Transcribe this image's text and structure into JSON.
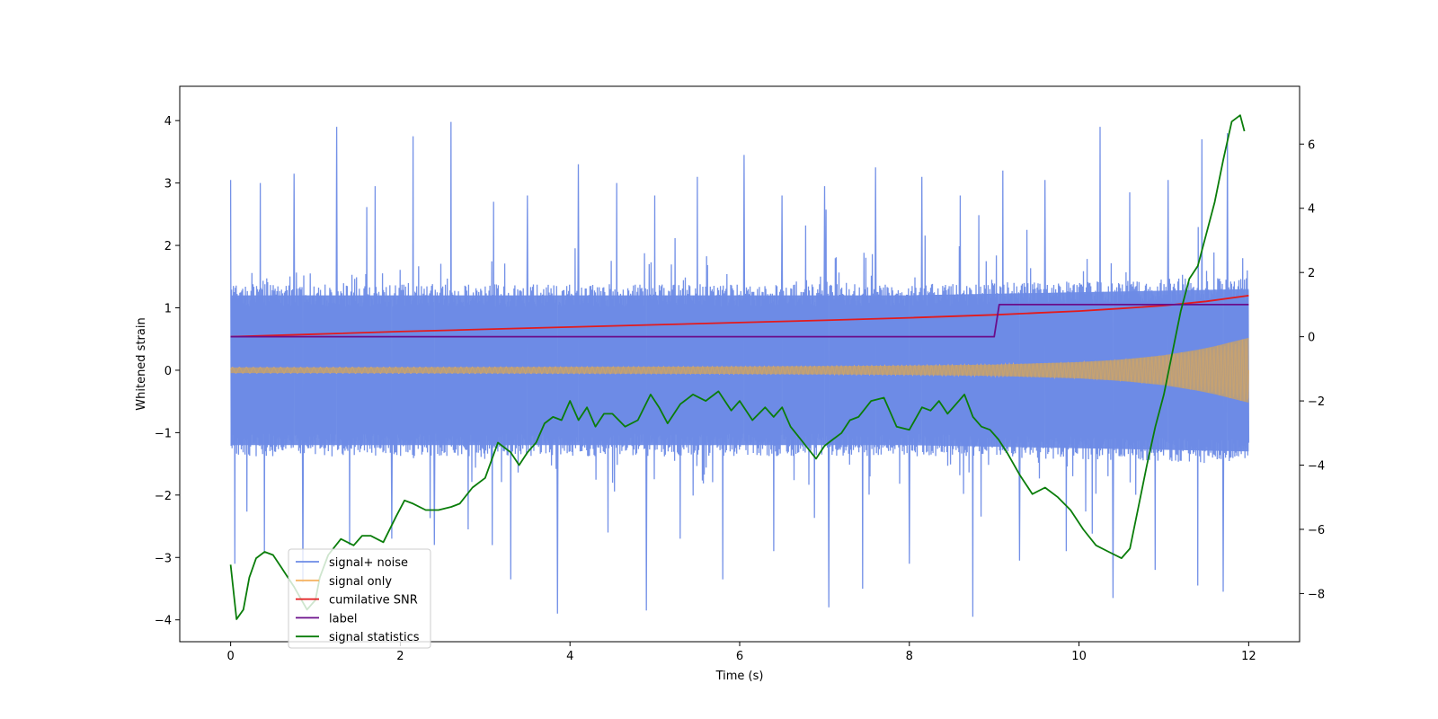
{
  "chart_data": {
    "type": "line",
    "title": "",
    "xlabel": "Time (s)",
    "ylabel": "Whitened strain",
    "y2label": "",
    "xlim": [
      -0.6,
      12.6
    ],
    "ylim": [
      -4.35,
      4.55
    ],
    "y2lim": [
      -9.5,
      7.8
    ],
    "x_ticks": [
      0,
      2,
      4,
      6,
      8,
      10,
      12
    ],
    "x_tick_labels": [
      "0",
      "2",
      "4",
      "6",
      "8",
      "10",
      "12"
    ],
    "y_ticks": [
      -4,
      -3,
      -2,
      -1,
      0,
      1,
      2,
      3,
      4
    ],
    "y_tick_labels": [
      "−4",
      "−3",
      "−2",
      "−1",
      "0",
      "1",
      "2",
      "3",
      "4"
    ],
    "y2_ticks": [
      -8,
      -6,
      -4,
      -2,
      0,
      2,
      4,
      6
    ],
    "y2_tick_labels": [
      "−8",
      "−6",
      "−4",
      "−2",
      "0",
      "2",
      "4",
      "6"
    ],
    "grid": false,
    "legend_position": "lower-left",
    "colors": {
      "noise": "#6d8be6",
      "signal": "#f5b463",
      "snr": "#e31a1c",
      "label": "#6a0d8a",
      "stats": "#0a7d0a",
      "axes": "#000000"
    },
    "series": [
      {
        "name": "signal+ noise",
        "axis": "left",
        "color": "#6d8be6",
        "description_of_range": "dense noisy band from t=0 to t=12",
        "envelope_x": [
          0,
          2,
          4,
          6,
          8,
          10,
          12
        ],
        "core_band_upper": [
          1.2,
          1.2,
          1.2,
          1.2,
          1.2,
          1.25,
          1.3
        ],
        "core_band_lower": [
          -1.2,
          -1.2,
          -1.2,
          -1.2,
          -1.2,
          -1.25,
          -1.3
        ],
        "peaks_x": [
          0.0,
          0.35,
          0.75,
          1.25,
          1.7,
          2.15,
          2.6,
          3.1,
          3.5,
          4.1,
          4.55,
          5.0,
          5.5,
          6.05,
          6.5,
          7.0,
          7.6,
          8.15,
          8.6,
          9.1,
          9.6,
          10.25,
          10.6,
          11.05,
          11.45,
          11.75
        ],
        "peaks_y": [
          3.05,
          3.0,
          3.15,
          3.9,
          2.95,
          3.75,
          3.98,
          2.7,
          2.8,
          3.3,
          3.0,
          2.8,
          3.1,
          3.45,
          2.8,
          2.95,
          3.25,
          3.1,
          2.8,
          3.2,
          3.05,
          3.9,
          2.85,
          3.05,
          3.7,
          3.8
        ],
        "troughs_x": [
          0.05,
          0.4,
          0.85,
          1.4,
          1.9,
          2.4,
          2.8,
          3.3,
          3.85,
          4.45,
          4.9,
          5.3,
          5.8,
          6.4,
          7.05,
          7.45,
          8.0,
          8.75,
          9.3,
          9.85,
          10.4,
          10.9,
          11.4,
          11.7
        ],
        "troughs_y": [
          -3.1,
          -2.9,
          -3.4,
          -2.8,
          -2.7,
          -2.8,
          -2.55,
          -3.35,
          -3.9,
          -2.6,
          -3.85,
          -2.7,
          -3.35,
          -2.9,
          -3.8,
          -3.5,
          -3.1,
          -3.95,
          -3.05,
          -2.9,
          -3.65,
          -3.2,
          -3.45,
          -3.55
        ]
      },
      {
        "name": "signal only",
        "axis": "left",
        "color": "#f5b463",
        "envelope_x": [
          0,
          1,
          2,
          3,
          4,
          5,
          6,
          7,
          8,
          9,
          10,
          10.5,
          11,
          11.5,
          12
        ],
        "envelope_amp": [
          0.045,
          0.046,
          0.048,
          0.05,
          0.053,
          0.056,
          0.06,
          0.066,
          0.075,
          0.09,
          0.13,
          0.17,
          0.24,
          0.35,
          0.52
        ]
      },
      {
        "name": "cumilative SNR",
        "axis": "right",
        "color": "#e31a1c",
        "x": [
          0,
          1,
          2,
          3,
          4,
          5,
          6,
          7,
          8,
          9,
          9.5,
          10,
          10.5,
          11,
          11.5,
          12
        ],
        "y": [
          0.0,
          0.08,
          0.16,
          0.23,
          0.3,
          0.37,
          0.44,
          0.51,
          0.59,
          0.68,
          0.74,
          0.8,
          0.88,
          0.97,
          1.1,
          1.28
        ]
      },
      {
        "name": "label",
        "axis": "right",
        "color": "#6a0d8a",
        "x": [
          0,
          9.0,
          9.06,
          12
        ],
        "y": [
          0,
          0,
          1,
          1
        ]
      },
      {
        "name": "signal statistics",
        "axis": "right",
        "color": "#0a7d0a",
        "x": [
          0,
          0.07,
          0.15,
          0.22,
          0.3,
          0.4,
          0.5,
          0.6,
          0.75,
          0.9,
          1.0,
          1.05,
          1.15,
          1.3,
          1.45,
          1.55,
          1.65,
          1.8,
          1.95,
          2.05,
          2.15,
          2.3,
          2.45,
          2.6,
          2.7,
          2.85,
          3.0,
          3.15,
          3.3,
          3.4,
          3.5,
          3.6,
          3.7,
          3.8,
          3.9,
          4.0,
          4.1,
          4.2,
          4.3,
          4.4,
          4.5,
          4.65,
          4.8,
          4.95,
          5.05,
          5.15,
          5.3,
          5.45,
          5.6,
          5.75,
          5.9,
          6.0,
          6.15,
          6.3,
          6.4,
          6.5,
          6.6,
          6.75,
          6.9,
          7.0,
          7.1,
          7.2,
          7.3,
          7.4,
          7.55,
          7.7,
          7.85,
          8.0,
          8.15,
          8.25,
          8.35,
          8.45,
          8.55,
          8.65,
          8.75,
          8.85,
          8.95,
          9.05,
          9.15,
          9.3,
          9.45,
          9.6,
          9.75,
          9.9,
          10.05,
          10.2,
          10.35,
          10.5,
          10.6,
          10.7,
          10.8,
          10.9,
          11.0,
          11.1,
          11.2,
          11.3,
          11.4,
          11.5,
          11.6,
          11.7,
          11.8,
          11.9,
          11.95
        ],
        "y": [
          -7.1,
          -8.8,
          -8.5,
          -7.5,
          -6.9,
          -6.7,
          -6.8,
          -7.2,
          -7.8,
          -8.5,
          -8.2,
          -7.5,
          -6.8,
          -6.3,
          -6.5,
          -6.2,
          -6.2,
          -6.4,
          -5.6,
          -5.1,
          -5.2,
          -5.4,
          -5.4,
          -5.3,
          -5.2,
          -4.7,
          -4.4,
          -3.3,
          -3.6,
          -4.0,
          -3.6,
          -3.3,
          -2.7,
          -2.5,
          -2.6,
          -2.0,
          -2.6,
          -2.2,
          -2.8,
          -2.4,
          -2.4,
          -2.8,
          -2.6,
          -1.8,
          -2.2,
          -2.7,
          -2.1,
          -1.8,
          -2.0,
          -1.7,
          -2.3,
          -2.0,
          -2.6,
          -2.2,
          -2.5,
          -2.2,
          -2.8,
          -3.3,
          -3.8,
          -3.4,
          -3.2,
          -3.0,
          -2.6,
          -2.5,
          -2.0,
          -1.9,
          -2.8,
          -2.9,
          -2.2,
          -2.3,
          -2.0,
          -2.4,
          -2.1,
          -1.8,
          -2.5,
          -2.8,
          -2.9,
          -3.2,
          -3.6,
          -4.3,
          -4.9,
          -4.7,
          -5.0,
          -5.4,
          -6.0,
          -6.5,
          -6.7,
          -6.9,
          -6.6,
          -5.3,
          -4.0,
          -2.8,
          -1.8,
          -0.5,
          0.8,
          1.8,
          2.2,
          3.2,
          4.2,
          5.5,
          6.7,
          6.9,
          6.4
        ]
      }
    ]
  }
}
